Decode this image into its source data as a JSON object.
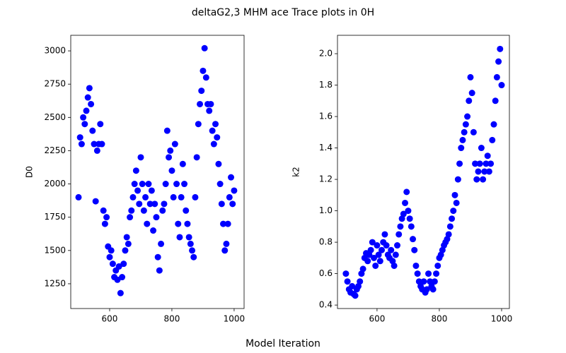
{
  "title": "deltaG2,3 MHM ace Trace plots in 0H",
  "xlabel": "Model Iteration",
  "chart_data": [
    {
      "type": "scatter",
      "ylabel": "D0",
      "color": "#0000ff",
      "x": [
        500,
        505,
        510,
        515,
        520,
        525,
        530,
        535,
        540,
        545,
        550,
        555,
        560,
        565,
        570,
        575,
        580,
        585,
        590,
        595,
        600,
        605,
        610,
        615,
        620,
        625,
        630,
        635,
        640,
        645,
        650,
        655,
        660,
        665,
        670,
        675,
        680,
        685,
        690,
        695,
        700,
        705,
        710,
        715,
        720,
        725,
        730,
        735,
        740,
        745,
        750,
        755,
        760,
        765,
        770,
        775,
        780,
        785,
        790,
        795,
        800,
        805,
        810,
        815,
        820,
        825,
        830,
        835,
        840,
        845,
        850,
        855,
        860,
        865,
        870,
        875,
        880,
        885,
        890,
        895,
        900,
        905,
        910,
        915,
        920,
        925,
        930,
        935,
        940,
        945,
        950,
        955,
        960,
        965,
        970,
        975,
        980,
        985,
        990,
        995,
        1000
      ],
      "values": [
        1900,
        2350,
        2300,
        2500,
        2450,
        2550,
        2650,
        2720,
        2600,
        2400,
        2300,
        1870,
        2250,
        2300,
        2450,
        2300,
        1800,
        1700,
        1750,
        1530,
        1450,
        1500,
        1400,
        1300,
        1350,
        1280,
        1380,
        1180,
        1300,
        1400,
        1500,
        1600,
        1550,
        1750,
        1800,
        1900,
        2000,
        2100,
        1950,
        1850,
        2200,
        2000,
        1800,
        1900,
        1700,
        2000,
        1850,
        1950,
        1650,
        1850,
        1750,
        1450,
        1350,
        1550,
        1800,
        1850,
        2000,
        2400,
        2200,
        2250,
        2100,
        1900,
        2300,
        2000,
        1700,
        1600,
        1900,
        2150,
        2000,
        1800,
        1700,
        1600,
        1550,
        1500,
        1450,
        1900,
        2200,
        2450,
        2600,
        2700,
        2850,
        3020,
        2800,
        2600,
        2550,
        2600,
        2400,
        2300,
        2450,
        2350,
        2150,
        2000,
        1850,
        1700,
        1500,
        1550,
        1700,
        1900,
        2050,
        1850,
        1950
      ],
      "xlim": [
        475,
        1032
      ],
      "xticks": [
        600,
        800,
        1000
      ],
      "ylim": [
        1064,
        3117
      ],
      "yticks": [
        1250,
        1500,
        1750,
        2000,
        2250,
        2500,
        2750,
        3000
      ]
    },
    {
      "type": "scatter",
      "ylabel": "k2",
      "color": "#0000ff",
      "x": [
        500,
        505,
        510,
        515,
        520,
        525,
        530,
        535,
        540,
        545,
        550,
        555,
        560,
        565,
        570,
        575,
        580,
        585,
        590,
        595,
        600,
        605,
        610,
        615,
        620,
        625,
        630,
        635,
        640,
        645,
        650,
        655,
        660,
        665,
        670,
        675,
        680,
        685,
        690,
        695,
        700,
        705,
        710,
        715,
        720,
        725,
        730,
        735,
        740,
        745,
        750,
        755,
        760,
        765,
        770,
        775,
        780,
        785,
        790,
        795,
        800,
        805,
        810,
        815,
        820,
        825,
        830,
        835,
        840,
        845,
        850,
        855,
        860,
        865,
        870,
        875,
        880,
        885,
        890,
        895,
        900,
        905,
        910,
        915,
        920,
        925,
        930,
        935,
        940,
        945,
        950,
        955,
        960,
        965,
        970,
        975,
        980,
        985,
        990,
        995,
        1000
      ],
      "values": [
        0.6,
        0.55,
        0.5,
        0.48,
        0.52,
        0.47,
        0.46,
        0.5,
        0.52,
        0.55,
        0.6,
        0.63,
        0.7,
        0.73,
        0.68,
        0.72,
        0.75,
        0.8,
        0.7,
        0.65,
        0.78,
        0.72,
        0.68,
        0.75,
        0.8,
        0.85,
        0.78,
        0.72,
        0.7,
        0.75,
        0.68,
        0.65,
        0.72,
        0.78,
        0.85,
        0.9,
        0.95,
        0.98,
        1.05,
        1.12,
        1.0,
        0.95,
        0.9,
        0.82,
        0.75,
        0.65,
        0.6,
        0.55,
        0.52,
        0.5,
        0.55,
        0.48,
        0.5,
        0.6,
        0.55,
        0.52,
        0.5,
        0.55,
        0.6,
        0.65,
        0.7,
        0.72,
        0.75,
        0.78,
        0.8,
        0.82,
        0.85,
        0.9,
        0.95,
        1.0,
        1.1,
        1.05,
        1.2,
        1.3,
        1.4,
        1.45,
        1.5,
        1.55,
        1.6,
        1.7,
        1.85,
        1.75,
        1.5,
        1.3,
        1.2,
        1.25,
        1.3,
        1.4,
        1.2,
        1.25,
        1.3,
        1.35,
        1.25,
        1.3,
        1.45,
        1.55,
        1.7,
        1.85,
        1.95,
        2.03,
        1.8
      ],
      "xlim": [
        473,
        1025
      ],
      "xticks": [
        600,
        800,
        1000
      ],
      "ylim": [
        0.378,
        2.117
      ],
      "yticks": [
        0.4,
        0.6,
        0.8,
        {
          "value": 1,
          "label": "1.0"
        },
        1.2,
        1.4,
        1.6,
        1.8,
        {
          "value": 2,
          "label": "2.0"
        }
      ]
    }
  ]
}
